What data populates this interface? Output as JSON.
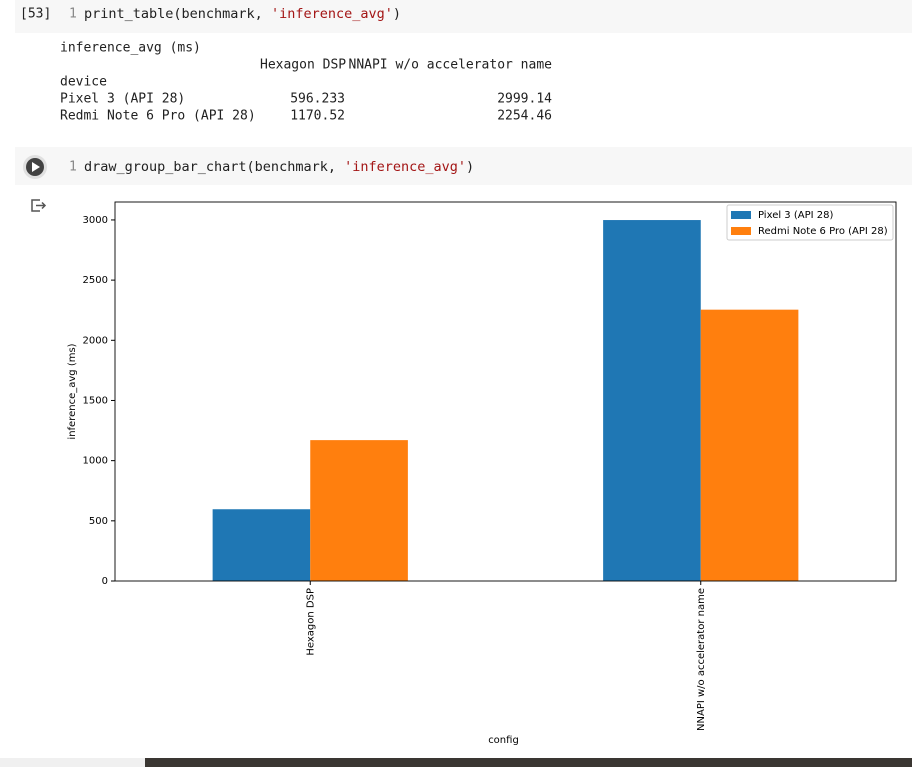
{
  "cells": [
    {
      "execution_count": "[53]",
      "line_number": "1",
      "code_parts": [
        "print_table(benchmark, ",
        "'inference_avg'",
        ")"
      ],
      "output": {
        "title": "inference_avg (ms)",
        "columns": [
          "Hexagon DSP",
          "NNAPI w/o accelerator name"
        ],
        "index_name": "device",
        "rows": [
          {
            "label": "Pixel 3 (API 28)",
            "values": [
              596.233,
              2999.14
            ]
          },
          {
            "label": "Redmi Note 6 Pro (API 28)",
            "values": [
              1170.52,
              2254.46
            ]
          }
        ]
      }
    },
    {
      "line_number": "1",
      "code_parts": [
        "draw_group_bar_chart(benchmark, ",
        "'inference_avg'",
        ")"
      ]
    }
  ],
  "chart_data": {
    "type": "bar",
    "categories": [
      "Hexagon DSP",
      "NNAPI w/o accelerator name"
    ],
    "series": [
      {
        "name": "Pixel 3 (API 28)",
        "color": "#1f77b4",
        "values": [
          596.233,
          2999.14
        ]
      },
      {
        "name": "Redmi Note 6 Pro (API 28)",
        "color": "#ff7f0e",
        "values": [
          1170.52,
          2254.46
        ]
      }
    ],
    "ylabel": "inference_avg (ms)",
    "xlabel": "config",
    "ylim": [
      0,
      3149.1
    ],
    "yticks": [
      0,
      500,
      1000,
      1500,
      2000,
      2500,
      3000
    ],
    "legend": "upper-right",
    "grid": false
  }
}
